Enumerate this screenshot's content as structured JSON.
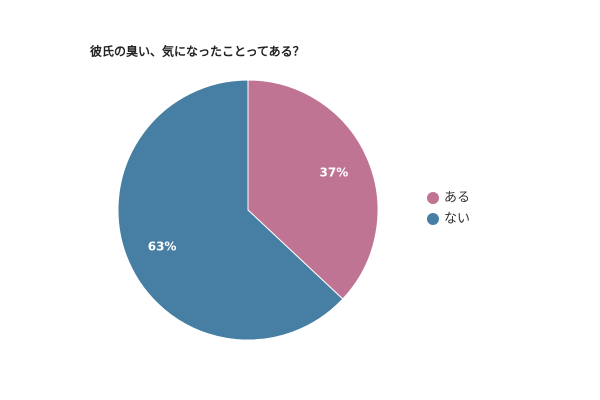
{
  "chart_data": {
    "type": "pie",
    "title": "彼氏の臭い、気になったことってある？",
    "categories": [
      "ある",
      "ない"
    ],
    "values": [
      37,
      63
    ],
    "value_labels": [
      "37%",
      "63%"
    ],
    "colors": [
      "#c07494",
      "#467fa3"
    ],
    "legend": "right"
  }
}
